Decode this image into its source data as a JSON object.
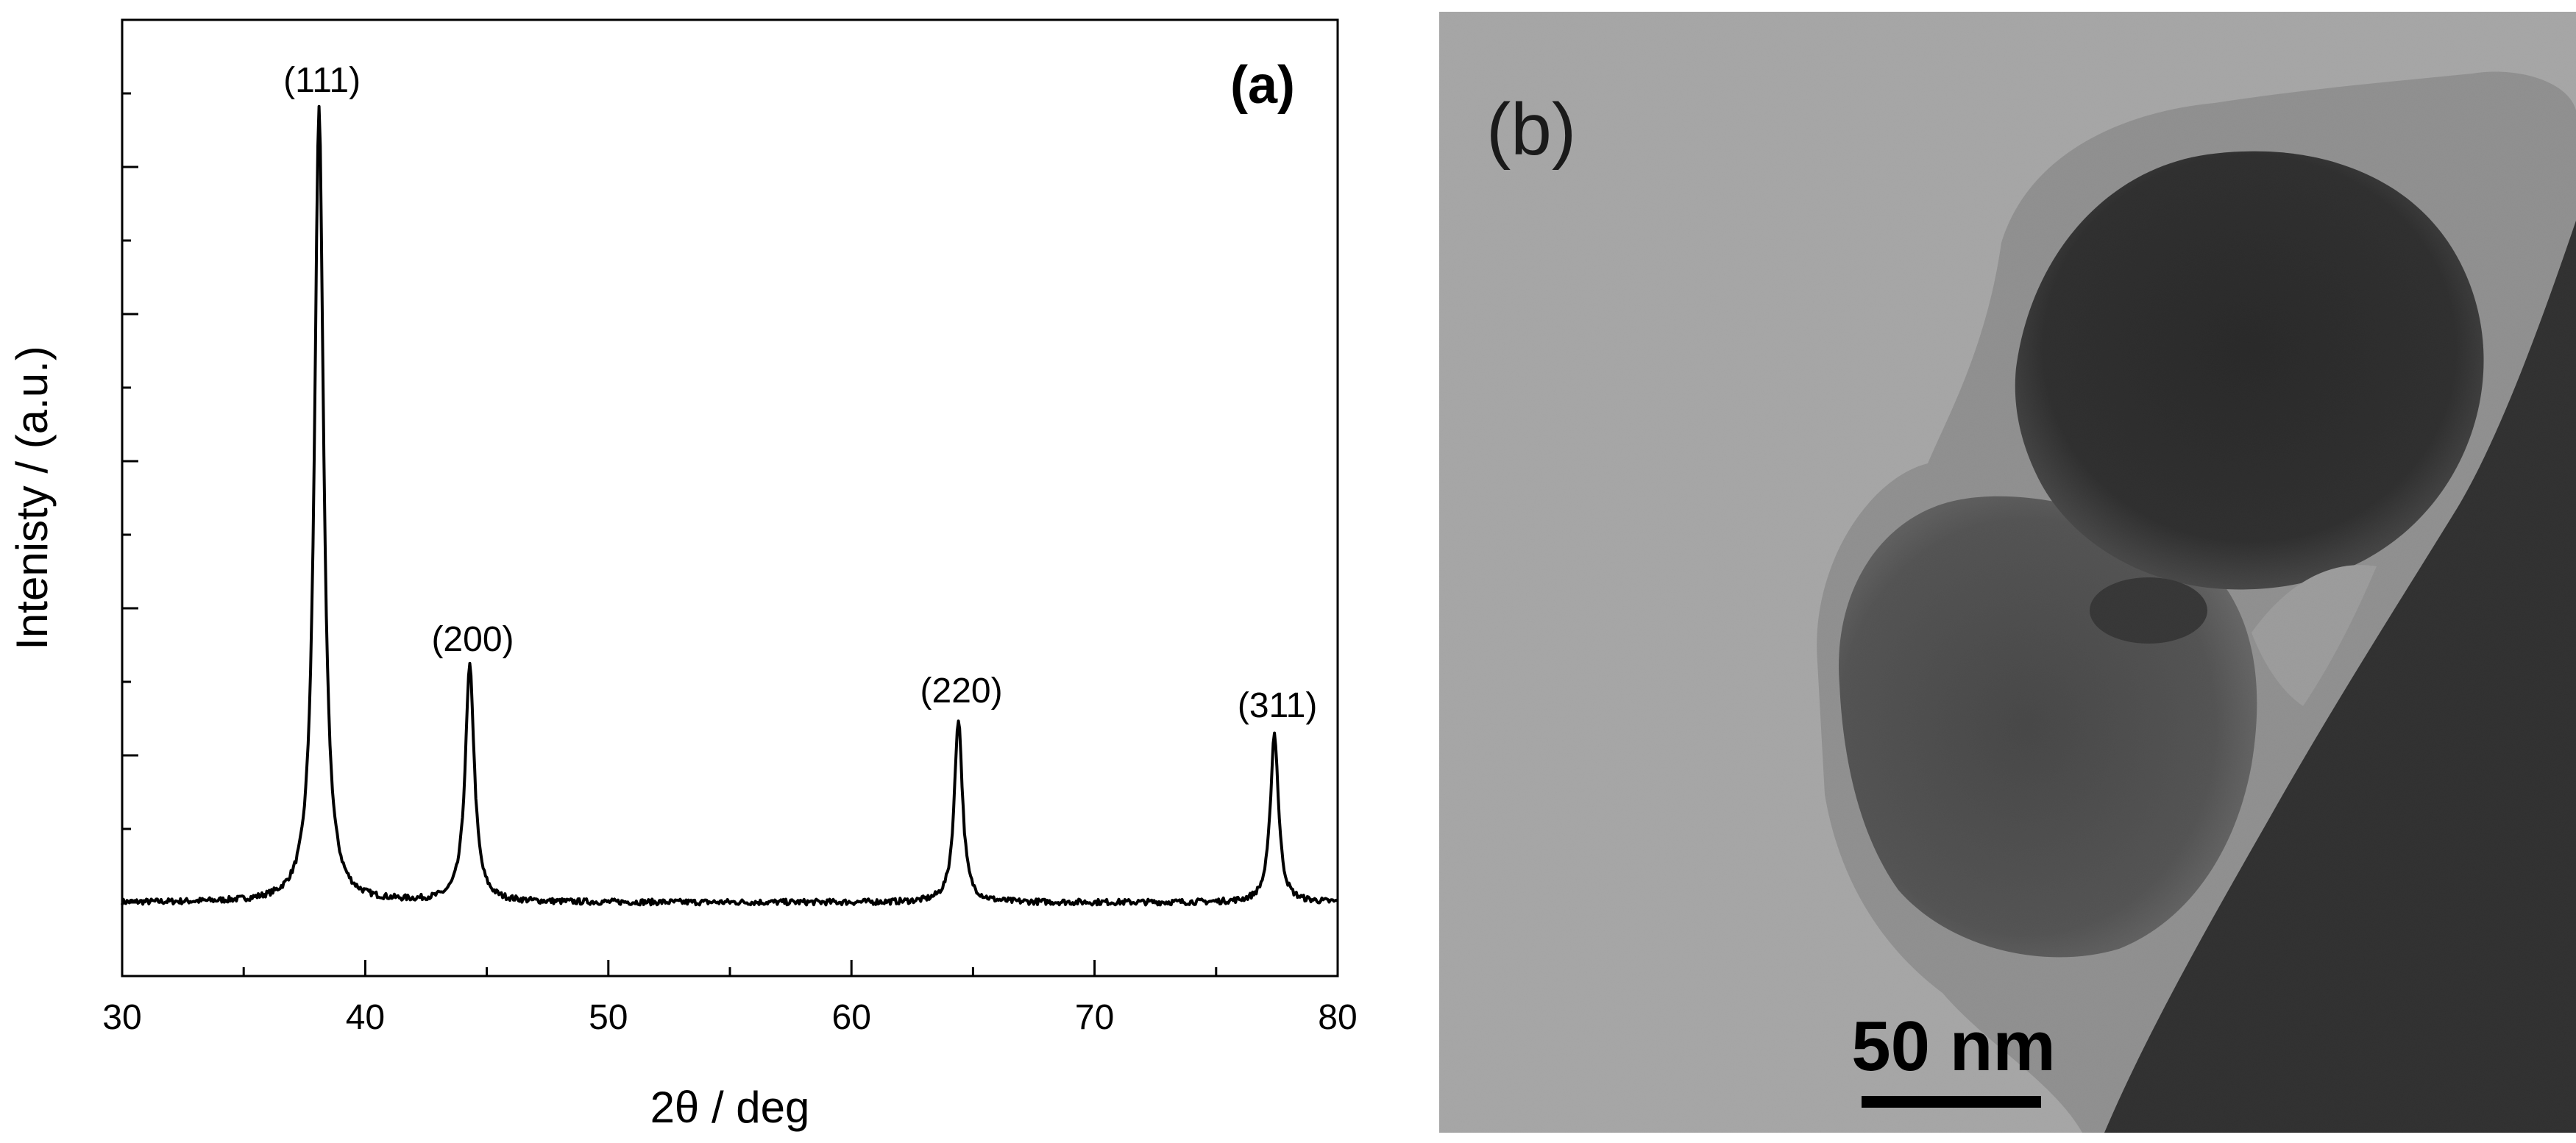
{
  "panel_a": {
    "label": "(a)",
    "chart_data": {
      "type": "line",
      "title": "",
      "xlabel": "2θ / deg",
      "ylabel": "Intenisty / (a.u.)",
      "xlim": [
        30,
        80
      ],
      "x_ticks": [
        30,
        40,
        50,
        60,
        70,
        80
      ],
      "x_tick_labels": [
        "30",
        "40",
        "50",
        "60",
        "70",
        "80"
      ],
      "ylim": [
        -0.1,
        1.2
      ],
      "grid": false,
      "legend": "none",
      "series": [
        {
          "baseline": 0.0,
          "peaks": [
            {
              "x": 38.1,
              "height": 1.08,
              "width": 0.45,
              "label": "(111)"
            },
            {
              "x": 44.3,
              "height": 0.32,
              "width": 0.45,
              "label": "(200)"
            },
            {
              "x": 64.4,
              "height": 0.25,
              "width": 0.4,
              "label": "(220)"
            },
            {
              "x": 77.4,
              "height": 0.23,
              "width": 0.4,
              "label": "(311)"
            }
          ]
        }
      ],
      "annotations": [
        "(111)",
        "(200)",
        "(220)",
        "(311)"
      ]
    }
  },
  "panel_b": {
    "label": "(b)",
    "scale_bar_label": "50 nm",
    "description_colors": {
      "background_gray": "#a9a9a9",
      "particle_dark": "#050505",
      "shell_mid": "#666666"
    }
  }
}
